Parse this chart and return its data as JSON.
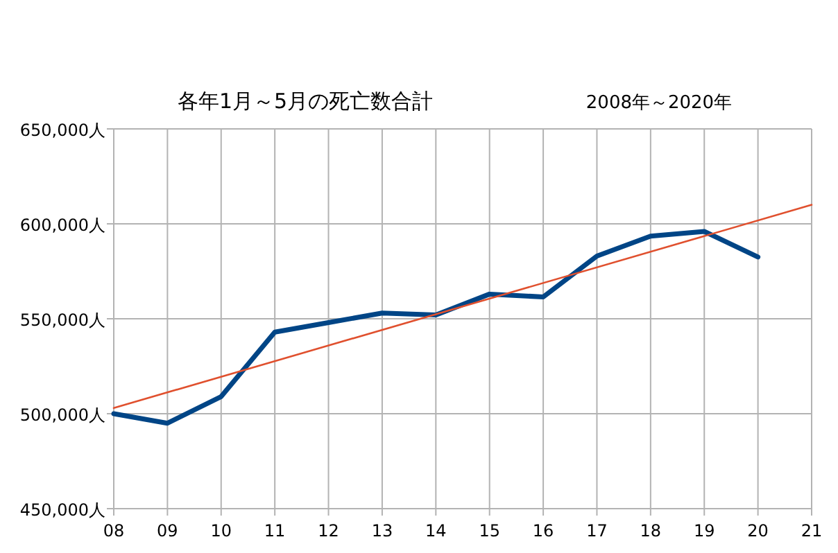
{
  "chart_data": {
    "type": "line",
    "title": "各年1月～5月の死亡数合計",
    "subtitle": "2008年～2020年",
    "xlim": [
      8,
      21
    ],
    "xticks": [
      {
        "value": 8,
        "label": "08"
      },
      {
        "value": 9,
        "label": "09"
      },
      10,
      11,
      12,
      13,
      14,
      15,
      16,
      17,
      18,
      19,
      20,
      21
    ],
    "ylim": [
      450000,
      650000
    ],
    "yticks": [
      {
        "value": 450000,
        "label": "450,000人"
      },
      {
        "value": 500000,
        "label": "500,000人"
      },
      {
        "value": 550000,
        "label": "550,000人"
      },
      {
        "value": 600000,
        "label": "600,000人"
      },
      {
        "value": 650000,
        "label": "650,000人"
      }
    ],
    "grid": true,
    "marker": "none",
    "line_style": "solid",
    "series": [
      {
        "color": "#004586",
        "x": [
          8,
          9,
          10,
          11,
          12,
          13,
          14,
          15,
          16,
          17,
          18,
          19,
          20
        ],
        "values": [
          500000,
          495000,
          509000,
          543000,
          548000,
          553000,
          552000,
          563000,
          561500,
          583000,
          593500,
          596000,
          582500
        ]
      },
      {
        "color": "#e0502e",
        "x": [
          8,
          21
        ],
        "values": [
          503000,
          610000
        ]
      }
    ]
  }
}
